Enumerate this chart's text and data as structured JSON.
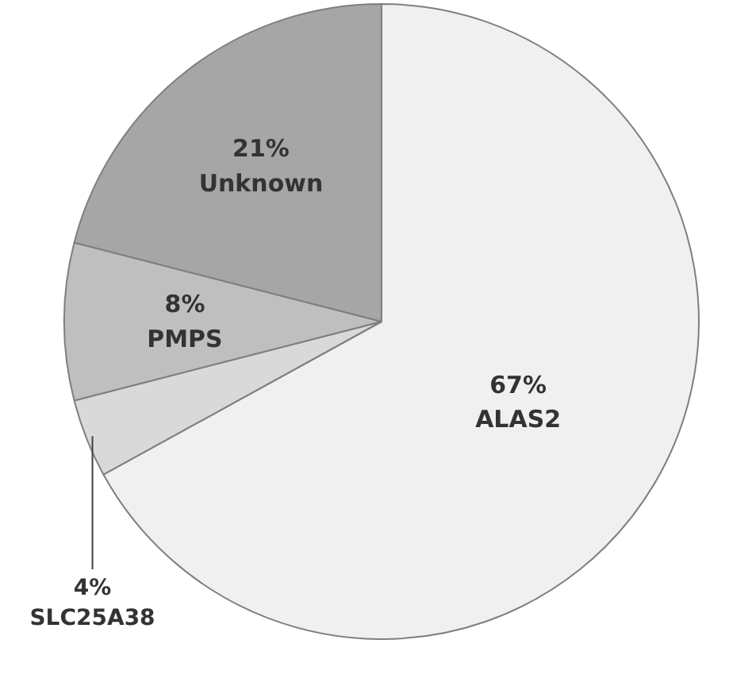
{
  "chart_data": {
    "type": "pie",
    "categories": [
      "ALAS2",
      "SLC25A38",
      "PMPS",
      "Unknown"
    ],
    "values": [
      67,
      4,
      8,
      21
    ],
    "value_labels": [
      "67%",
      "4%",
      "8%",
      "21%"
    ],
    "colors": [
      "#f0f0f0",
      "#d9d9d9",
      "#bfbfbf",
      "#a6a6a6"
    ]
  }
}
